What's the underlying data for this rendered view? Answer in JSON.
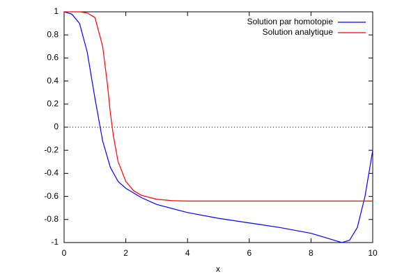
{
  "chart_data": {
    "type": "line",
    "x_label": "x",
    "xlim": [
      0,
      10
    ],
    "xticks": [
      0,
      2,
      4,
      6,
      8,
      10
    ],
    "ylim": [
      -1,
      1
    ],
    "yticks": [
      -1,
      -0.8,
      -0.6,
      -0.4,
      -0.2,
      0,
      0.2,
      0.4,
      0.6,
      0.8,
      1
    ],
    "zero_axis": true,
    "legend": "top-right",
    "series": [
      {
        "name": "Solution par homotopie",
        "color": "#0000ff",
        "x": [
          0,
          0.25,
          0.5,
          0.75,
          1,
          1.25,
          1.5,
          1.75,
          2,
          2.5,
          3,
          4,
          5,
          6,
          7,
          8,
          8.5,
          8.75,
          9,
          9.25,
          9.5,
          9.75,
          10
        ],
        "values": [
          1,
          0.98,
          0.9,
          0.65,
          0.25,
          -0.12,
          -0.35,
          -0.47,
          -0.53,
          -0.61,
          -0.67,
          -0.74,
          -0.79,
          -0.83,
          -0.87,
          -0.92,
          -0.96,
          -0.98,
          -1.0,
          -0.98,
          -0.87,
          -0.6,
          -0.2
        ]
      },
      {
        "name": "Solution analytique",
        "color": "#ff0000",
        "x": [
          0,
          0.5,
          0.75,
          1,
          1.25,
          1.4,
          1.5,
          1.6,
          1.75,
          2,
          2.25,
          2.5,
          3,
          3.5,
          4,
          5,
          10
        ],
        "values": [
          1,
          1.0,
          0.99,
          0.95,
          0.7,
          0.38,
          0.12,
          -0.08,
          -0.3,
          -0.47,
          -0.55,
          -0.59,
          -0.625,
          -0.637,
          -0.64,
          -0.64,
          -0.64
        ]
      }
    ]
  }
}
